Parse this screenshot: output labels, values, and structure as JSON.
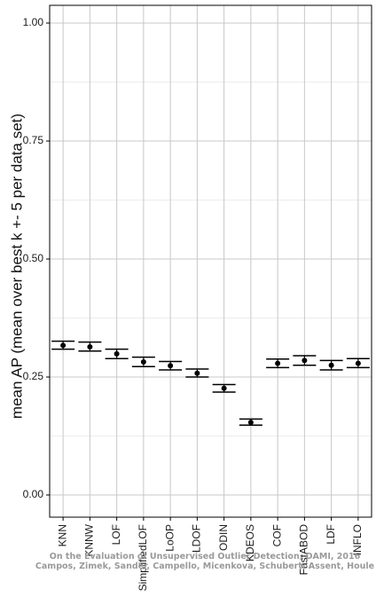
{
  "chart_data": {
    "type": "scatter",
    "subtype": "point-with-error-bars",
    "title": "",
    "xlabel": "",
    "ylabel": "mean AP (mean over best k +- 5 per data set)",
    "ylim": [
      0,
      1
    ],
    "yticks": [
      "0.00",
      "0.25",
      "0.50",
      "0.75",
      "1.00"
    ],
    "grid": true,
    "categories": [
      "KNN",
      "KNNW",
      "LOF",
      "SimplifiedLOF",
      "LoOP",
      "LDOF",
      "ODIN",
      "KDEOS",
      "COF",
      "FastABOD",
      "LDF",
      "INFLO"
    ],
    "series": [
      {
        "values": [
          0.317,
          0.314,
          0.299,
          0.282,
          0.274,
          0.258,
          0.226,
          0.154,
          0.279,
          0.285,
          0.275,
          0.279
        ],
        "lower": [
          0.309,
          0.305,
          0.289,
          0.272,
          0.265,
          0.25,
          0.218,
          0.148,
          0.27,
          0.275,
          0.265,
          0.27
        ],
        "upper": [
          0.326,
          0.324,
          0.309,
          0.292,
          0.283,
          0.267,
          0.234,
          0.161,
          0.288,
          0.295,
          0.285,
          0.289
        ]
      }
    ],
    "watermark": [
      "On the Evaluation of Unsupervised Outlier Detection, DAMI, 2016",
      "Campos, Zimek, Sander, Campello, Micenkova, Schubert, Assent, Houle"
    ],
    "colors": {
      "points": "#000000",
      "grid": "#c8c8c8",
      "frame": "#000000"
    }
  }
}
